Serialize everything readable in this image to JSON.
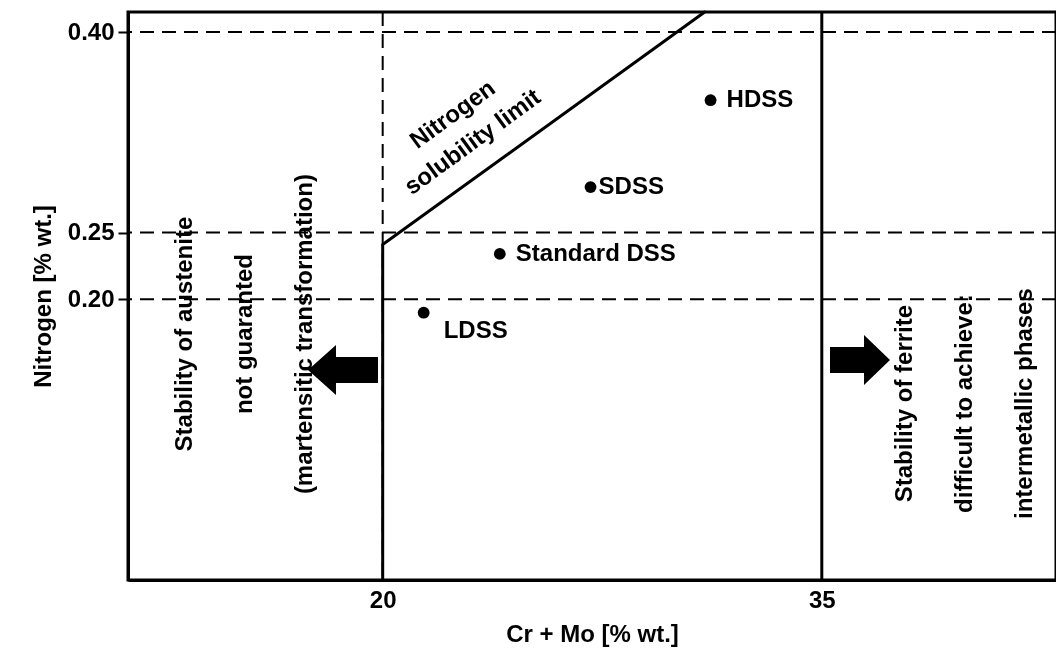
{
  "chart_data": {
    "type": "scatter",
    "xlabel": "Cr + Mo  [% wt.]",
    "ylabel": "Nitrogen [% wt.]",
    "xlim": [
      11.3,
      43
    ],
    "ylim": [
      -0.01,
      0.415
    ],
    "xticks": [
      20,
      35
    ],
    "yticks": [
      {
        "value": 0.2,
        "label": "0.20"
      },
      {
        "value": 0.25,
        "label": "0.25"
      },
      {
        "value": 0.4,
        "label": "0.40"
      }
    ],
    "series": [
      {
        "type": "line",
        "color": "#000000",
        "line_style": "solid",
        "marker": "none",
        "x": [
          20,
          20,
          31
        ],
        "values": [
          -0.01,
          0.241,
          0.415
        ]
      },
      {
        "type": "scatter",
        "color": "#000000",
        "marker": "circle",
        "x": [
          21.4,
          24,
          27.1,
          31.2
        ],
        "values": [
          0.19,
          0.234,
          0.284,
          0.349
        ]
      }
    ],
    "ref_lines": [
      {
        "axis": "y",
        "value": 0.4,
        "line_style": "dashed"
      },
      {
        "axis": "y",
        "value": 0.25,
        "line_style": "dashed"
      },
      {
        "axis": "y",
        "value": 0.2,
        "line_style": "dashed"
      },
      {
        "axis": "x",
        "value": 20,
        "line_style": "dashed"
      },
      {
        "axis": "x",
        "value": 35,
        "line_style": "solid"
      }
    ],
    "annotations": [
      {
        "text": "LDSS",
        "x": 21.4,
        "y": 0.19
      },
      {
        "text": "Standard DSS",
        "x": 24,
        "y": 0.234
      },
      {
        "text": "SDSS",
        "x": 27.1,
        "y": 0.284
      },
      {
        "text": "HDSS",
        "x": 31.2,
        "y": 0.349
      },
      "Nitrogen\nsolubility limit",
      "Stability of austenite\nnot guaranted\n(martensitic transformation)",
      "Stability of ferrite\ndifficult to achieve:\nintermetallic phases"
    ]
  }
}
